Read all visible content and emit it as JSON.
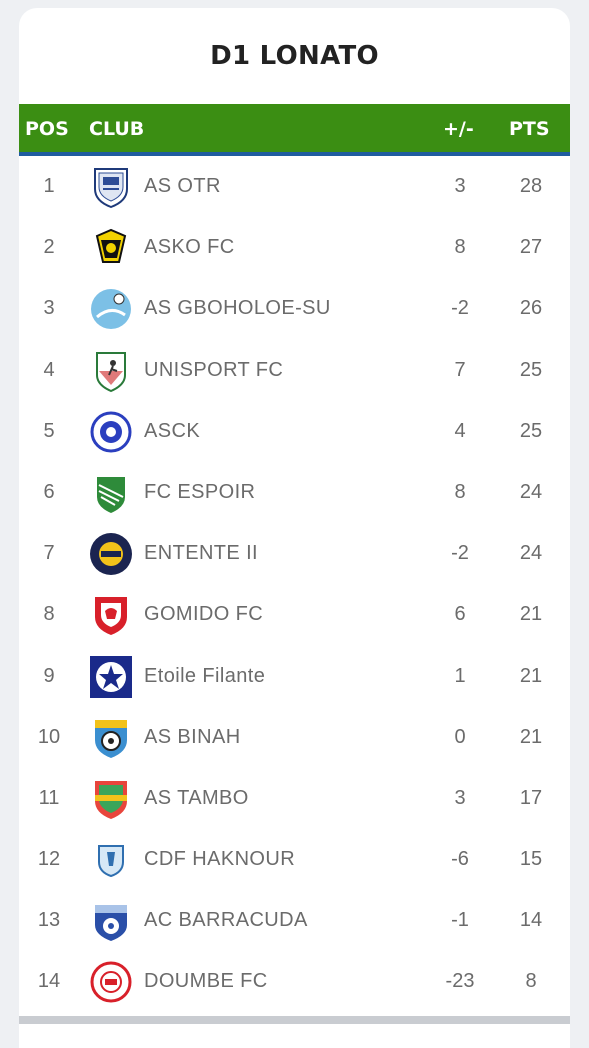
{
  "title": "D1 LONATO",
  "header": {
    "pos": "POS",
    "club": "CLUB",
    "diff": "+/-",
    "pts": "PTS"
  },
  "colors": {
    "header_bg": "#3b8e13",
    "header_underline": "#1f5c9f",
    "text": "#6b6b6b"
  },
  "rows": [
    {
      "pos": "1",
      "club": "AS OTR",
      "diff": "3",
      "pts": "28",
      "logo": "as-otr-crest-icon"
    },
    {
      "pos": "2",
      "club": "ASKO FC",
      "diff": "8",
      "pts": "27",
      "logo": "asko-fc-crest-icon"
    },
    {
      "pos": "3",
      "club": "AS GBOHOLOE-SU",
      "diff": "-2",
      "pts": "26",
      "logo": "as-gboholoe-su-crest-icon"
    },
    {
      "pos": "4",
      "club": "UNISPORT FC",
      "diff": "7",
      "pts": "25",
      "logo": "unisport-fc-crest-icon"
    },
    {
      "pos": "5",
      "club": "ASCK",
      "diff": "4",
      "pts": "25",
      "logo": "asck-crest-icon"
    },
    {
      "pos": "6",
      "club": "FC ESPOIR",
      "diff": "8",
      "pts": "24",
      "logo": "fc-espoir-crest-icon"
    },
    {
      "pos": "7",
      "club": "ENTENTE II",
      "diff": "-2",
      "pts": "24",
      "logo": "entente-ii-crest-icon"
    },
    {
      "pos": "8",
      "club": "GOMIDO FC",
      "diff": "6",
      "pts": "21",
      "logo": "gomido-fc-crest-icon"
    },
    {
      "pos": "9",
      "club": "Etoile Filante",
      "diff": "1",
      "pts": "21",
      "logo": "etoile-filante-crest-icon"
    },
    {
      "pos": "10",
      "club": "AS BINAH",
      "diff": "0",
      "pts": "21",
      "logo": "as-binah-crest-icon"
    },
    {
      "pos": "11",
      "club": "AS TAMBO",
      "diff": "3",
      "pts": "17",
      "logo": "as-tambo-crest-icon"
    },
    {
      "pos": "12",
      "club": "CDF HAKNOUR",
      "diff": "-6",
      "pts": "15",
      "logo": "cdf-haknour-crest-icon"
    },
    {
      "pos": "13",
      "club": "AC BARRACUDA",
      "diff": "-1",
      "pts": "14",
      "logo": "ac-barracuda-crest-icon"
    },
    {
      "pos": "14",
      "club": "DOUMBE FC",
      "diff": "-23",
      "pts": "8",
      "logo": "doumbe-fc-crest-icon"
    }
  ]
}
